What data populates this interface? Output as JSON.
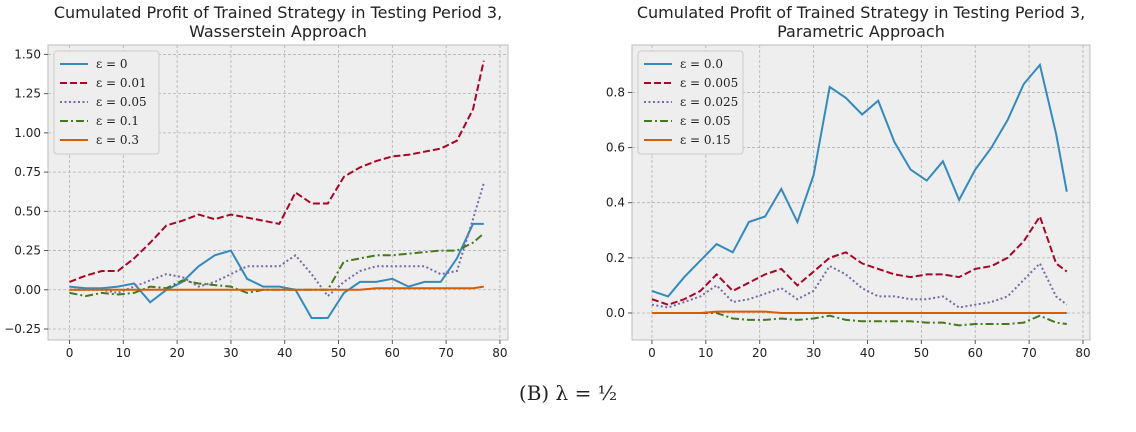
{
  "chart_data": [
    {
      "type": "line",
      "title": "Cumulated Profit of Trained Strategy in Testing Period 3,\nWasserstein Approach",
      "x": [
        0,
        3,
        6,
        9,
        12,
        15,
        18,
        21,
        24,
        27,
        30,
        33,
        36,
        39,
        42,
        45,
        48,
        51,
        54,
        57,
        60,
        63,
        66,
        69,
        72,
        75,
        77
      ],
      "xlim": [
        -4,
        81.5
      ],
      "xticks": [
        0,
        10,
        20,
        30,
        40,
        50,
        60,
        70,
        80
      ],
      "ylim": [
        -0.32,
        1.56
      ],
      "yticks": [
        {
          "value": -0.25,
          "label": "−0.25"
        },
        {
          "value": 0,
          "label": "0.00"
        },
        {
          "value": 0.25,
          "label": "0.25"
        },
        {
          "value": 0.5,
          "label": "0.50"
        },
        {
          "value": 0.75,
          "label": "0.75"
        },
        {
          "value": 1,
          "label": "1.00"
        },
        {
          "value": 1.25,
          "label": "1.25"
        },
        {
          "value": 1.5,
          "label": "1.50"
        }
      ],
      "grid": true,
      "legend": "upper left",
      "series": [
        {
          "name": "ε = 0",
          "color": "#348ABD",
          "dash": "solid",
          "values": [
            0.02,
            0.01,
            0.01,
            0.02,
            0.04,
            -0.08,
            0.0,
            0.05,
            0.15,
            0.22,
            0.25,
            0.07,
            0.02,
            0.02,
            0.0,
            -0.18,
            -0.18,
            -0.02,
            0.05,
            0.05,
            0.07,
            0.02,
            0.05,
            0.05,
            0.2,
            0.42,
            0.42
          ]
        },
        {
          "name": "ε = 0.01",
          "color": "#A60628",
          "dash": "dashed",
          "values": [
            0.05,
            0.09,
            0.12,
            0.12,
            0.2,
            0.3,
            0.41,
            0.44,
            0.48,
            0.45,
            0.48,
            0.46,
            0.44,
            0.42,
            0.62,
            0.55,
            0.55,
            0.72,
            0.78,
            0.82,
            0.85,
            0.86,
            0.88,
            0.9,
            0.95,
            1.15,
            1.46
          ]
        },
        {
          "name": "ε = 0.05",
          "color": "#7A68A6",
          "dash": "dotted",
          "values": [
            0.0,
            0.0,
            0.0,
            -0.02,
            0.02,
            0.06,
            0.1,
            0.08,
            0.02,
            0.05,
            0.1,
            0.15,
            0.15,
            0.15,
            0.22,
            0.1,
            -0.04,
            0.05,
            0.12,
            0.15,
            0.15,
            0.15,
            0.15,
            0.1,
            0.12,
            0.45,
            0.68
          ]
        },
        {
          "name": "ε = 0.1",
          "color": "#467821",
          "dash": "dashdot",
          "values": [
            -0.02,
            -0.04,
            -0.02,
            -0.03,
            -0.02,
            0.02,
            0.01,
            0.06,
            0.04,
            0.03,
            0.02,
            -0.02,
            0.0,
            0.0,
            0.0,
            0.0,
            0.0,
            0.18,
            0.2,
            0.22,
            0.22,
            0.23,
            0.24,
            0.25,
            0.25,
            0.3,
            0.36
          ]
        },
        {
          "name": "ε = 0.3",
          "color": "#D55E00",
          "dash": "solid",
          "values": [
            0,
            0,
            0,
            0,
            0,
            0,
            0,
            0,
            0,
            0,
            0,
            0,
            0,
            0,
            0,
            0,
            0,
            0,
            0,
            0.01,
            0.01,
            0.01,
            0.01,
            0.01,
            0.01,
            0.01,
            0.02
          ]
        }
      ]
    },
    {
      "type": "line",
      "title": "Cumulated Profit of Trained Strategy in Testing Period 3,\nParametric Approach",
      "x": [
        0,
        3,
        6,
        9,
        12,
        15,
        18,
        21,
        24,
        27,
        30,
        33,
        36,
        39,
        42,
        45,
        48,
        51,
        54,
        57,
        60,
        63,
        66,
        69,
        72,
        75,
        77
      ],
      "xlim": [
        -3.7,
        81.3
      ],
      "xticks": [
        0,
        10,
        20,
        30,
        40,
        50,
        60,
        70,
        80
      ],
      "ylim": [
        -0.098,
        0.972
      ],
      "yticks": [
        {
          "value": 0,
          "label": "0.0"
        },
        0.2,
        0.4,
        0.6,
        0.8
      ],
      "grid": true,
      "legend": "upper left",
      "series": [
        {
          "name": "ε = 0.0",
          "color": "#348ABD",
          "dash": "solid",
          "values": [
            0.08,
            0.06,
            0.13,
            0.19,
            0.25,
            0.22,
            0.33,
            0.35,
            0.45,
            0.33,
            0.5,
            0.82,
            0.78,
            0.72,
            0.77,
            0.62,
            0.52,
            0.48,
            0.55,
            0.41,
            0.52,
            0.6,
            0.7,
            0.83,
            0.9,
            0.65,
            0.44
          ]
        },
        {
          "name": "ε = 0.005",
          "color": "#A60628",
          "dash": "dashed",
          "values": [
            0.05,
            0.03,
            0.05,
            0.08,
            0.14,
            0.08,
            0.11,
            0.14,
            0.16,
            0.1,
            0.15,
            0.2,
            0.22,
            0.18,
            0.16,
            0.14,
            0.13,
            0.14,
            0.14,
            0.13,
            0.16,
            0.17,
            0.2,
            0.26,
            0.35,
            0.18,
            0.15
          ]
        },
        {
          "name": "ε = 0.025",
          "color": "#7A68A6",
          "dash": "dotted",
          "values": [
            0.03,
            0.02,
            0.04,
            0.06,
            0.1,
            0.04,
            0.05,
            0.07,
            0.09,
            0.05,
            0.08,
            0.17,
            0.14,
            0.09,
            0.06,
            0.06,
            0.05,
            0.05,
            0.06,
            0.02,
            0.03,
            0.04,
            0.06,
            0.12,
            0.18,
            0.06,
            0.03
          ]
        },
        {
          "name": "ε = 0.05",
          "color": "#467821",
          "dash": "dashdot",
          "values": [
            0,
            0,
            0,
            0,
            0,
            -0.02,
            -0.025,
            -0.025,
            -0.02,
            -0.025,
            -0.02,
            -0.01,
            -0.025,
            -0.03,
            -0.03,
            -0.03,
            -0.03,
            -0.035,
            -0.035,
            -0.045,
            -0.04,
            -0.04,
            -0.04,
            -0.035,
            -0.01,
            -0.035,
            -0.04
          ]
        },
        {
          "name": "ε = 0.15",
          "color": "#D55E00",
          "dash": "solid",
          "values": [
            0,
            0,
            0,
            0,
            0.005,
            0.005,
            0.005,
            0.005,
            0,
            0,
            0,
            0,
            0,
            0,
            0,
            0,
            0,
            0,
            0,
            0,
            0,
            0,
            0,
            0,
            0,
            0,
            0
          ]
        }
      ]
    }
  ],
  "caption": "(B) λ = ½"
}
